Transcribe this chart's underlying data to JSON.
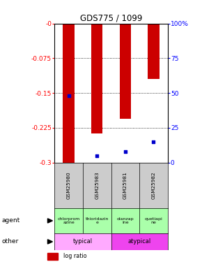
{
  "title": "GDS775 / 1099",
  "samples": [
    "GSM25980",
    "GSM25983",
    "GSM25981",
    "GSM25982"
  ],
  "log_ratios": [
    -0.3,
    -0.237,
    -0.205,
    -0.12
  ],
  "percentile_ranks": [
    0.48,
    0.05,
    0.08,
    0.15
  ],
  "ylim_min": -0.3,
  "ylim_max": 0.0,
  "yticks_left": [
    -0.3,
    -0.225,
    -0.15,
    -0.075,
    0.0
  ],
  "ytick_labels_left": [
    "-0.3",
    "-0.225",
    "-0.15",
    "-0.075",
    "-0"
  ],
  "yticks_right": [
    0,
    25,
    50,
    75,
    100
  ],
  "ytick_labels_right": [
    "0",
    "25",
    "50",
    "75",
    "100%"
  ],
  "bar_color": "#cc0000",
  "percentile_color": "#0000cc",
  "agents": [
    "chlorprom\nazine",
    "thioridazin\ne",
    "olanzap\nine",
    "quetiapi\nne"
  ],
  "bg_color_sample": "#cccccc",
  "bg_color_agent": "#aaffaa",
  "bg_color_typical": "#ffaaff",
  "bg_color_atypical": "#ee44ee",
  "bar_width": 0.4
}
